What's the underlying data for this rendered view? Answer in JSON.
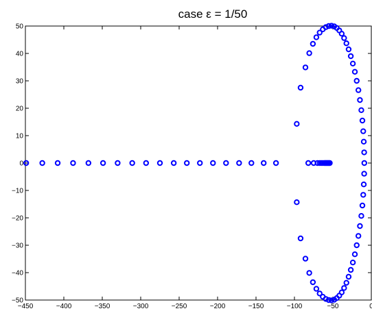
{
  "chart_data": {
    "type": "scatter",
    "title": "case ε = 1/50",
    "xlabel": "",
    "ylabel": "",
    "xlim": [
      -450,
      0
    ],
    "ylim": [
      -50,
      50
    ],
    "xticks": [
      -450,
      -400,
      -350,
      -300,
      -250,
      -200,
      -150,
      -100,
      -50,
      0
    ],
    "yticks": [
      -50,
      -40,
      -30,
      -20,
      -10,
      0,
      10,
      20,
      30,
      40,
      50
    ],
    "grid": false,
    "marker": "circle-open",
    "color": "#0000ff",
    "series": [
      {
        "points": [
          [
            -449,
            0
          ],
          [
            -428,
            0
          ],
          [
            -408,
            0
          ],
          [
            -388,
            0
          ],
          [
            -368,
            0
          ],
          [
            -349,
            0
          ],
          [
            -330,
            0
          ],
          [
            -311,
            0
          ],
          [
            -293,
            0
          ],
          [
            -275,
            0
          ],
          [
            -257,
            0
          ],
          [
            -240,
            0
          ],
          [
            -223,
            0
          ],
          [
            -206,
            0
          ],
          [
            -189,
            0
          ],
          [
            -172,
            0
          ],
          [
            -156,
            0
          ],
          [
            -140,
            0
          ],
          [
            -124,
            0
          ],
          [
            -97,
            14.3
          ],
          [
            -97,
            -14.3
          ],
          [
            -92,
            27.5
          ],
          [
            -92,
            -27.5
          ],
          [
            -82,
            0
          ],
          [
            -75,
            0
          ],
          [
            -70,
            0
          ],
          [
            -67,
            0
          ],
          [
            -65,
            0
          ],
          [
            -63,
            0
          ],
          [
            -61,
            0
          ],
          [
            -60,
            0
          ],
          [
            -59,
            0
          ],
          [
            -58,
            0
          ],
          [
            -57,
            0
          ],
          [
            -56,
            0
          ],
          [
            -55,
            0
          ],
          [
            -54,
            0
          ],
          [
            -85.7,
            34.9
          ],
          [
            -80.7,
            40.1
          ],
          [
            -76.0,
            43.5
          ],
          [
            -71.5,
            45.9
          ],
          [
            -67.2,
            47.6
          ],
          [
            -63.1,
            48.8
          ],
          [
            -59.2,
            49.6
          ],
          [
            -55.4,
            50.0
          ],
          [
            -51.8,
            50.1
          ],
          [
            -48.3,
            49.9
          ],
          [
            -45.0,
            49.3
          ],
          [
            -41.7,
            48.4
          ],
          [
            -38.5,
            47.2
          ],
          [
            -35.4,
            45.6
          ],
          [
            -32.4,
            43.7
          ],
          [
            -29.5,
            41.5
          ],
          [
            -26.7,
            39.0
          ],
          [
            -24.0,
            36.3
          ],
          [
            -21.4,
            33.3
          ],
          [
            -19.0,
            30.0
          ],
          [
            -16.8,
            26.6
          ],
          [
            -14.8,
            23.0
          ],
          [
            -13.0,
            19.3
          ],
          [
            -11.6,
            15.5
          ],
          [
            -10.5,
            11.6
          ],
          [
            -9.8,
            7.8
          ],
          [
            -9.3,
            3.9
          ],
          [
            -9.1,
            0.0
          ],
          [
            -9.3,
            -3.9
          ],
          [
            -9.8,
            -7.8
          ],
          [
            -10.5,
            -11.6
          ],
          [
            -11.6,
            -15.5
          ],
          [
            -13.0,
            -19.3
          ],
          [
            -14.8,
            -23.0
          ],
          [
            -16.8,
            -26.6
          ],
          [
            -19.0,
            -30.0
          ],
          [
            -21.4,
            -33.3
          ],
          [
            -24.0,
            -36.3
          ],
          [
            -26.7,
            -39.0
          ],
          [
            -29.5,
            -41.5
          ],
          [
            -32.4,
            -43.7
          ],
          [
            -35.4,
            -45.6
          ],
          [
            -38.5,
            -47.2
          ],
          [
            -41.7,
            -48.4
          ],
          [
            -45.0,
            -49.3
          ],
          [
            -48.3,
            -49.9
          ],
          [
            -51.8,
            -50.1
          ],
          [
            -55.4,
            -50.0
          ],
          [
            -59.2,
            -49.6
          ],
          [
            -63.1,
            -48.8
          ],
          [
            -67.2,
            -47.6
          ],
          [
            -71.5,
            -45.9
          ],
          [
            -76.0,
            -43.5
          ],
          [
            -80.7,
            -40.1
          ],
          [
            -85.7,
            -34.9
          ]
        ]
      }
    ]
  }
}
